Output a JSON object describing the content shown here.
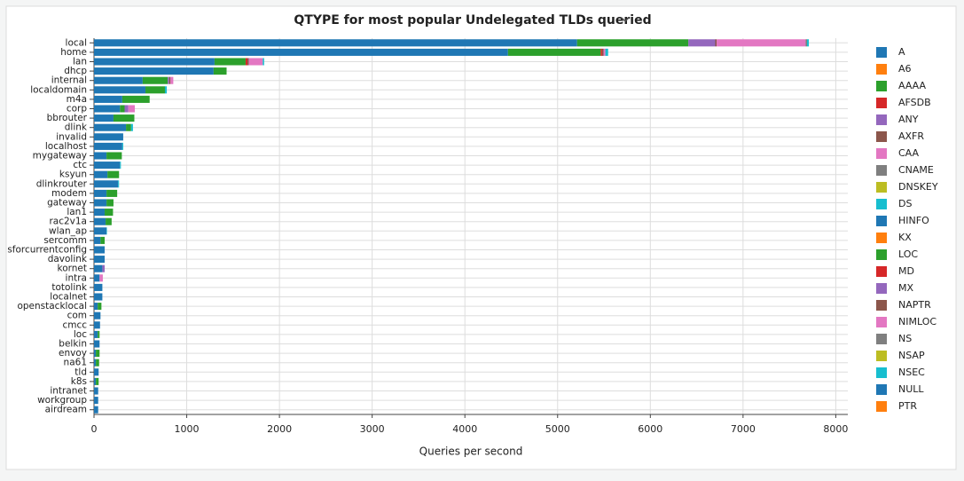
{
  "chart_data": {
    "type": "stacked-barh",
    "title": "QTYPE for most popular Undelegated TLDs queried",
    "x_label": "Queries per second",
    "categories": [
      "local",
      "home",
      "lan",
      "dhcp",
      "internal",
      "localdomain",
      "m4a",
      "corp",
      "bbrouter",
      "dlink",
      "invalid",
      "localhost",
      "mygateway",
      "ctc",
      "ksyun",
      "dlinkrouter",
      "modem",
      "gateway",
      "lan1",
      "rac2v1a",
      "wlan_ap",
      "sercomm",
      "sforcurrentconfig",
      "davolink",
      "kornet",
      "intra",
      "totolink",
      "localnet",
      "openstacklocal",
      "com",
      "cmcc",
      "loc",
      "belkin",
      "envoy",
      "na61",
      "tld",
      "k8s",
      "intranet",
      "workgroup",
      "airdream"
    ],
    "xlim": [
      0,
      8130
    ],
    "xticks": [
      0,
      1000,
      2000,
      3000,
      4000,
      5000,
      6000,
      7000,
      8000
    ],
    "grid": true,
    "series": [
      {
        "name": "A",
        "color": "#1f77b4",
        "values": [
          5210,
          4465,
          1300,
          1290,
          525,
          555,
          305,
          280,
          210,
          345,
          315,
          305,
          135,
          280,
          145,
          260,
          135,
          135,
          115,
          125,
          135,
          70,
          115,
          115,
          90,
          60,
          90,
          90,
          40,
          70,
          65,
          40,
          60,
          20,
          20,
          50,
          20,
          45,
          45,
          45
        ]
      },
      {
        "name": "A6",
        "color": "#ff7f0e",
        "values": [
          0,
          0,
          0,
          0,
          0,
          0,
          0,
          0,
          0,
          0,
          0,
          0,
          0,
          0,
          0,
          0,
          0,
          0,
          0,
          0,
          0,
          0,
          0,
          0,
          0,
          0,
          0,
          0,
          0,
          0,
          0,
          0,
          0,
          0,
          0,
          0,
          0,
          0,
          0,
          0
        ]
      },
      {
        "name": "AAAA",
        "color": "#2ca02c",
        "values": [
          1200,
          1000,
          335,
          140,
          270,
          210,
          295,
          50,
          225,
          55,
          0,
          0,
          165,
          0,
          125,
          0,
          115,
          75,
          90,
          65,
          0,
          45,
          0,
          0,
          0,
          0,
          0,
          0,
          40,
          0,
          0,
          20,
          0,
          40,
          35,
          0,
          30,
          0,
          0,
          0
        ]
      },
      {
        "name": "AFSDB",
        "color": "#d62728",
        "values": [
          0,
          15,
          20,
          0,
          0,
          0,
          0,
          0,
          0,
          0,
          0,
          0,
          0,
          0,
          0,
          0,
          0,
          0,
          0,
          0,
          0,
          0,
          0,
          0,
          0,
          0,
          0,
          0,
          0,
          0,
          0,
          0,
          0,
          0,
          0,
          0,
          0,
          0,
          0,
          0
        ]
      },
      {
        "name": "ANY",
        "color": "#9467bd",
        "values": [
          290,
          0,
          0,
          0,
          15,
          0,
          0,
          40,
          0,
          0,
          0,
          0,
          0,
          0,
          0,
          0,
          0,
          0,
          0,
          0,
          0,
          0,
          0,
          0,
          25,
          0,
          0,
          0,
          0,
          0,
          0,
          0,
          0,
          0,
          0,
          0,
          0,
          0,
          0,
          0
        ]
      },
      {
        "name": "AXFR",
        "color": "#8c564b",
        "values": [
          15,
          15,
          15,
          0,
          15,
          0,
          0,
          0,
          0,
          0,
          0,
          0,
          0,
          0,
          0,
          0,
          0,
          0,
          0,
          0,
          0,
          0,
          0,
          0,
          0,
          0,
          0,
          0,
          0,
          0,
          0,
          0,
          0,
          0,
          0,
          0,
          0,
          0,
          0,
          0
        ]
      },
      {
        "name": "CAA",
        "color": "#e377c2",
        "values": [
          960,
          20,
          150,
          0,
          30,
          0,
          0,
          70,
          0,
          0,
          0,
          0,
          0,
          0,
          0,
          0,
          0,
          0,
          0,
          0,
          0,
          0,
          0,
          0,
          0,
          35,
          0,
          0,
          0,
          0,
          0,
          0,
          0,
          0,
          0,
          0,
          0,
          0,
          0,
          0
        ]
      },
      {
        "name": "CNAME",
        "color": "#7f7f7f",
        "values": [
          15,
          0,
          0,
          0,
          0,
          0,
          0,
          0,
          0,
          0,
          0,
          0,
          0,
          0,
          0,
          0,
          0,
          0,
          0,
          0,
          0,
          0,
          0,
          0,
          0,
          0,
          0,
          0,
          0,
          0,
          0,
          0,
          0,
          0,
          0,
          0,
          0,
          0,
          0,
          0
        ]
      },
      {
        "name": "DNSKEY",
        "color": "#bcbd22",
        "values": [
          0,
          0,
          0,
          0,
          0,
          0,
          0,
          0,
          0,
          0,
          0,
          0,
          0,
          0,
          0,
          0,
          0,
          0,
          0,
          0,
          0,
          0,
          0,
          0,
          0,
          0,
          0,
          0,
          0,
          0,
          0,
          0,
          0,
          0,
          0,
          0,
          0,
          0,
          0,
          0
        ]
      },
      {
        "name": "DS",
        "color": "#17becf",
        "values": [
          0,
          0,
          0,
          0,
          0,
          0,
          0,
          0,
          0,
          0,
          0,
          0,
          0,
          0,
          0,
          0,
          0,
          0,
          0,
          0,
          0,
          0,
          0,
          0,
          0,
          0,
          0,
          0,
          0,
          0,
          0,
          0,
          0,
          0,
          0,
          0,
          0,
          0,
          0,
          0
        ]
      },
      {
        "name": "HINFO",
        "color": "#1f77b4",
        "values": [
          0,
          0,
          0,
          0,
          0,
          0,
          0,
          0,
          0,
          0,
          0,
          0,
          0,
          0,
          0,
          0,
          0,
          0,
          0,
          0,
          0,
          0,
          0,
          0,
          0,
          0,
          0,
          0,
          0,
          0,
          0,
          0,
          0,
          0,
          0,
          0,
          0,
          0,
          0,
          0
        ]
      },
      {
        "name": "KX",
        "color": "#ff7f0e",
        "values": [
          0,
          0,
          0,
          0,
          0,
          0,
          0,
          0,
          0,
          0,
          0,
          0,
          0,
          0,
          0,
          0,
          0,
          0,
          0,
          0,
          0,
          0,
          0,
          0,
          0,
          0,
          0,
          0,
          0,
          0,
          0,
          0,
          0,
          0,
          0,
          0,
          0,
          0,
          0,
          0
        ]
      },
      {
        "name": "LOC",
        "color": "#2ca02c",
        "values": [
          0,
          0,
          0,
          0,
          0,
          0,
          0,
          0,
          0,
          0,
          0,
          0,
          0,
          0,
          0,
          0,
          0,
          0,
          0,
          0,
          0,
          0,
          0,
          0,
          0,
          0,
          0,
          0,
          0,
          0,
          0,
          0,
          0,
          0,
          0,
          0,
          0,
          0,
          0,
          0
        ]
      },
      {
        "name": "MD",
        "color": "#d62728",
        "values": [
          0,
          0,
          0,
          0,
          0,
          0,
          0,
          0,
          0,
          0,
          0,
          0,
          0,
          0,
          0,
          0,
          0,
          0,
          0,
          0,
          0,
          0,
          0,
          0,
          0,
          0,
          0,
          0,
          0,
          0,
          0,
          0,
          0,
          0,
          0,
          0,
          0,
          0,
          0,
          0
        ]
      },
      {
        "name": "MX",
        "color": "#9467bd",
        "values": [
          0,
          0,
          0,
          0,
          0,
          0,
          0,
          0,
          0,
          0,
          0,
          0,
          0,
          0,
          0,
          0,
          0,
          0,
          0,
          0,
          0,
          0,
          0,
          0,
          0,
          0,
          0,
          0,
          0,
          0,
          0,
          0,
          0,
          0,
          0,
          0,
          0,
          0,
          0,
          0
        ]
      },
      {
        "name": "NAPTR",
        "color": "#8c564b",
        "values": [
          0,
          0,
          0,
          0,
          0,
          0,
          0,
          0,
          0,
          0,
          0,
          0,
          0,
          0,
          0,
          0,
          0,
          0,
          0,
          0,
          0,
          0,
          0,
          0,
          0,
          0,
          0,
          0,
          0,
          0,
          0,
          0,
          0,
          0,
          0,
          0,
          0,
          0,
          0,
          0
        ]
      },
      {
        "name": "NIMLOC",
        "color": "#e377c2",
        "values": [
          0,
          0,
          0,
          0,
          0,
          0,
          0,
          0,
          0,
          0,
          0,
          0,
          0,
          0,
          0,
          0,
          0,
          0,
          0,
          0,
          0,
          0,
          0,
          0,
          0,
          0,
          0,
          0,
          0,
          0,
          0,
          0,
          0,
          0,
          0,
          0,
          0,
          0,
          0,
          0
        ]
      },
      {
        "name": "NS",
        "color": "#7f7f7f",
        "values": [
          0,
          0,
          0,
          0,
          0,
          0,
          0,
          0,
          0,
          0,
          0,
          0,
          0,
          0,
          0,
          0,
          0,
          0,
          0,
          0,
          0,
          0,
          0,
          0,
          0,
          0,
          0,
          0,
          0,
          0,
          0,
          0,
          0,
          0,
          0,
          0,
          0,
          0,
          0,
          0
        ]
      },
      {
        "name": "NSAP",
        "color": "#bcbd22",
        "values": [
          0,
          0,
          0,
          0,
          0,
          0,
          0,
          0,
          0,
          0,
          0,
          0,
          0,
          0,
          0,
          0,
          0,
          0,
          0,
          0,
          0,
          0,
          0,
          0,
          0,
          0,
          0,
          0,
          0,
          0,
          0,
          0,
          0,
          0,
          0,
          0,
          0,
          0,
          0,
          0
        ]
      },
      {
        "name": "NSEC",
        "color": "#17becf",
        "values": [
          20,
          30,
          15,
          0,
          0,
          20,
          0,
          0,
          0,
          20,
          0,
          10,
          0,
          10,
          0,
          10,
          0,
          0,
          0,
          0,
          5,
          0,
          0,
          0,
          0,
          0,
          0,
          0,
          0,
          0,
          0,
          0,
          0,
          0,
          0,
          0,
          0,
          0,
          0,
          0
        ]
      },
      {
        "name": "NULL",
        "color": "#1f77b4",
        "values": [
          0,
          0,
          0,
          0,
          0,
          0,
          0,
          0,
          0,
          0,
          0,
          0,
          0,
          0,
          0,
          0,
          0,
          0,
          0,
          0,
          0,
          0,
          0,
          0,
          0,
          0,
          0,
          0,
          0,
          0,
          0,
          0,
          0,
          0,
          0,
          0,
          0,
          0,
          0,
          0
        ]
      },
      {
        "name": "PTR",
        "color": "#ff7f0e",
        "values": [
          0,
          0,
          0,
          0,
          0,
          0,
          0,
          0,
          0,
          0,
          0,
          0,
          0,
          0,
          0,
          0,
          0,
          0,
          0,
          0,
          0,
          0,
          0,
          0,
          0,
          0,
          0,
          0,
          0,
          0,
          0,
          0,
          0,
          0,
          0,
          0,
          0,
          0,
          0,
          0
        ]
      }
    ]
  }
}
